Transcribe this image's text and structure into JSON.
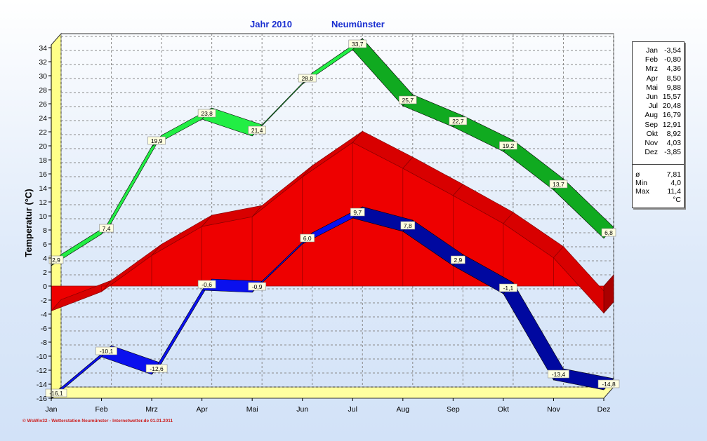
{
  "title": {
    "year": "Jahr  2010",
    "place": "Neumünster"
  },
  "footer": "© WsWin32 - Wetterstation Neumünster - Internetwetter.de   01.01.2011",
  "legend": {
    "months": [
      {
        "label": "Jan",
        "value": "-3,54"
      },
      {
        "label": "Feb",
        "value": "-0,80"
      },
      {
        "label": "Mrz",
        "value": "4,36"
      },
      {
        "label": "Apr",
        "value": "8,50"
      },
      {
        "label": "Mai",
        "value": "9,88"
      },
      {
        "label": "Jun",
        "value": "15,57"
      },
      {
        "label": "Jul",
        "value": "20,48"
      },
      {
        "label": "Aug",
        "value": "16,79"
      },
      {
        "label": "Sep",
        "value": "12,91"
      },
      {
        "label": "Okt",
        "value": "8,92"
      },
      {
        "label": "Nov",
        "value": "4,03"
      },
      {
        "label": "Dez",
        "value": "-3,85"
      }
    ],
    "stats": [
      {
        "label": "ø",
        "value": "7,81"
      },
      {
        "label": "Min",
        "value": "4,0"
      },
      {
        "label": "Max",
        "value": "11,4"
      }
    ],
    "unit": "°C"
  },
  "chart_data": {
    "type": "area",
    "ylabel": "Temperatur  (°C)",
    "ylim": [
      -16,
      35
    ],
    "yticks": [
      "-16",
      "-14",
      "-12",
      "-10",
      "-8",
      "-6",
      "-4",
      "-2",
      "0",
      "2",
      "4",
      "6",
      "8",
      "10",
      "12",
      "14",
      "16",
      "18",
      "20",
      "22",
      "24",
      "26",
      "28",
      "30",
      "32",
      "34"
    ],
    "categories": [
      "Jan",
      "Feb",
      "Mrz",
      "Apr",
      "Mai",
      "Jun",
      "Jul",
      "Aug",
      "Sep",
      "Okt",
      "Nov",
      "Dez"
    ],
    "series": [
      {
        "values": [
          -3.54,
          -0.8,
          4.36,
          8.5,
          9.88,
          15.57,
          20.48,
          16.79,
          12.91,
          8.92,
          4.03,
          -3.85
        ],
        "color": "#ee0000"
      },
      {
        "values": [
          2.9,
          7.4,
          19.9,
          23.8,
          21.4,
          28.8,
          33.7,
          25.7,
          22.7,
          19.2,
          13.7,
          6.8
        ],
        "labels": [
          "2,9",
          "7,4",
          "19,9",
          "23,8",
          "21,4",
          "28,8",
          "33,7",
          "25,7",
          "22,7",
          "19,2",
          "13,7",
          "6,8"
        ],
        "color": "#22ee44"
      },
      {
        "values": [
          -16.1,
          -10.1,
          -12.6,
          -0.6,
          -0.9,
          6.0,
          9.7,
          7.8,
          2.9,
          -1.1,
          -13.4,
          -14.8
        ],
        "labels": [
          "-16,1",
          "-10,1",
          "-12,6",
          "-0,6",
          "-0,9",
          "6,0",
          "9,7",
          "7,8",
          "2,9",
          "-1,1",
          "-13,4",
          "-14,8"
        ],
        "color": "#0a10ee"
      }
    ],
    "grid": true,
    "legend_position": "right"
  }
}
